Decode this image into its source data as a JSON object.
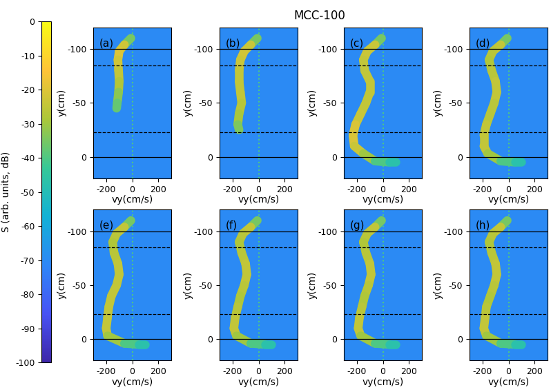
{
  "title": "MCC-100",
  "colorbar": {
    "label": "S (arb. units, dB)",
    "range": [
      -100,
      0
    ],
    "ticks": [
      0,
      -10,
      -20,
      -30,
      -40,
      -50,
      -60,
      -70,
      -80,
      -90,
      -100
    ]
  },
  "zero_line": {
    "v_y": 0,
    "S": -40
  },
  "background_S": -70,
  "chart_data": [
    {
      "type": "line",
      "title": "(a)",
      "x_label": "vy(cm/s)",
      "y_label": "y(cm)",
      "xlim": [
        -300,
        300
      ],
      "ylim": [
        20,
        -120
      ],
      "xticks": [
        -200,
        0,
        200
      ],
      "yticks": [
        -100,
        -50,
        0
      ],
      "lines": [
        {
          "y": -100,
          "line_style": "solid"
        },
        {
          "y": -85,
          "line_style": "dashed"
        },
        {
          "y": -23,
          "line_style": "dashed"
        },
        {
          "y": 0,
          "line_style": "solid"
        }
      ],
      "x": [
        -10,
        -60,
        -100,
        -110,
        -105,
        -100,
        -105,
        -115,
        -120
      ],
      "y": [
        -110,
        -104,
        -98,
        -90,
        -80,
        -70,
        -60,
        -50,
        -45
      ],
      "S": [
        -45,
        -25,
        -20,
        -20,
        -25,
        -25,
        -30,
        -35,
        -40
      ]
    },
    {
      "type": "line",
      "title": "(b)",
      "x_label": "vy(cm/s)",
      "y_label": "y(cm)",
      "xlim": [
        -300,
        300
      ],
      "ylim": [
        20,
        -120
      ],
      "xticks": [
        -200,
        0,
        200
      ],
      "yticks": [
        -100,
        -50,
        0
      ],
      "lines": [
        {
          "y": -100,
          "line_style": "solid"
        },
        {
          "y": -85,
          "line_style": "dashed"
        },
        {
          "y": -23,
          "line_style": "dashed"
        },
        {
          "y": 0,
          "line_style": "solid"
        }
      ],
      "x": [
        -10,
        -60,
        -110,
        -140,
        -150,
        -150,
        -140,
        -130,
        -150,
        -160,
        -150
      ],
      "y": [
        -110,
        -104,
        -98,
        -90,
        -80,
        -70,
        -60,
        -50,
        -40,
        -30,
        -25
      ],
      "S": [
        -45,
        -25,
        -22,
        -22,
        -25,
        -25,
        -25,
        -25,
        -28,
        -30,
        -38
      ]
    },
    {
      "type": "line",
      "title": "(c)",
      "x_label": "vy(cm/s)",
      "y_label": "y(cm)",
      "xlim": [
        -300,
        300
      ],
      "ylim": [
        20,
        -120
      ],
      "xticks": [
        -200,
        0,
        200
      ],
      "yticks": [
        -100,
        -50,
        0
      ],
      "lines": [
        {
          "y": -100,
          "line_style": "solid"
        },
        {
          "y": -85,
          "line_style": "dashed"
        },
        {
          "y": -23,
          "line_style": "dashed"
        },
        {
          "y": 0,
          "line_style": "solid"
        }
      ],
      "x": [
        -10,
        -60,
        -120,
        -150,
        -140,
        -100,
        -100,
        -130,
        -170,
        -210,
        -230,
        -220,
        -150,
        -60,
        50,
        100
      ],
      "y": [
        -110,
        -104,
        -98,
        -90,
        -80,
        -70,
        -60,
        -50,
        -40,
        -30,
        -20,
        -10,
        -3,
        4,
        5,
        5
      ],
      "S": [
        -45,
        -25,
        -22,
        -25,
        -25,
        -25,
        -25,
        -25,
        -25,
        -22,
        -20,
        -22,
        -25,
        -35,
        -45,
        -50
      ]
    },
    {
      "type": "line",
      "title": "(d)",
      "x_label": "vy(cm/s)",
      "y_label": "y(cm)",
      "xlim": [
        -300,
        300
      ],
      "ylim": [
        20,
        -120
      ],
      "xticks": [
        -200,
        0,
        200
      ],
      "yticks": [
        -100,
        -50,
        0
      ],
      "lines": [
        {
          "y": -100,
          "line_style": "solid"
        },
        {
          "y": -85,
          "line_style": "dashed"
        },
        {
          "y": -23,
          "line_style": "dashed"
        },
        {
          "y": 0,
          "line_style": "solid"
        }
      ],
      "x": [
        -10,
        -60,
        -120,
        -150,
        -130,
        -100,
        -90,
        -110,
        -140,
        -170,
        -190,
        -190,
        -160,
        -60,
        50,
        100
      ],
      "y": [
        -110,
        -104,
        -98,
        -90,
        -80,
        -70,
        -60,
        -50,
        -40,
        -30,
        -20,
        -10,
        -3,
        4,
        5,
        5
      ],
      "S": [
        -45,
        -25,
        -25,
        -28,
        -28,
        -25,
        -25,
        -25,
        -28,
        -25,
        -25,
        -25,
        -25,
        -35,
        -45,
        -50
      ]
    },
    {
      "type": "line",
      "title": "(e)",
      "x_label": "vy(cm/s)",
      "y_label": "y(cm)",
      "xlim": [
        -300,
        300
      ],
      "ylim": [
        20,
        -120
      ],
      "xticks": [
        -200,
        0,
        200
      ],
      "yticks": [
        -100,
        -50,
        0
      ],
      "lines": [
        {
          "y": -100,
          "line_style": "solid"
        },
        {
          "y": -85,
          "line_style": "dashed"
        },
        {
          "y": -23,
          "line_style": "dashed"
        },
        {
          "y": 0,
          "line_style": "solid"
        }
      ],
      "x": [
        -10,
        -60,
        -120,
        -150,
        -140,
        -110,
        -100,
        -120,
        -160,
        -180,
        -190,
        -200,
        -190,
        -60,
        50,
        100
      ],
      "y": [
        -110,
        -104,
        -98,
        -90,
        -80,
        -70,
        -60,
        -50,
        -40,
        -30,
        -20,
        -10,
        -3,
        4,
        5,
        5
      ],
      "S": [
        -45,
        -25,
        -25,
        -28,
        -28,
        -25,
        -25,
        -25,
        -25,
        -25,
        -25,
        -25,
        -25,
        -35,
        -45,
        -50
      ]
    },
    {
      "type": "line",
      "title": "(f)",
      "x_label": "vy(cm/s)",
      "y_label": "y(cm)",
      "xlim": [
        -300,
        300
      ],
      "ylim": [
        20,
        -120
      ],
      "xticks": [
        -200,
        0,
        200
      ],
      "yticks": [
        -100,
        -50,
        0
      ],
      "lines": [
        {
          "y": -100,
          "line_style": "solid"
        },
        {
          "y": -85,
          "line_style": "dashed"
        },
        {
          "y": -23,
          "line_style": "dashed"
        },
        {
          "y": 0,
          "line_style": "solid"
        }
      ],
      "x": [
        -10,
        -60,
        -120,
        -150,
        -130,
        -100,
        -90,
        -110,
        -140,
        -160,
        -180,
        -190,
        -170,
        -60,
        50,
        100
      ],
      "y": [
        -110,
        -104,
        -98,
        -90,
        -80,
        -70,
        -60,
        -50,
        -40,
        -30,
        -20,
        -10,
        -3,
        4,
        5,
        5
      ],
      "S": [
        -45,
        -25,
        -25,
        -28,
        -28,
        -25,
        -25,
        -25,
        -28,
        -28,
        -25,
        -25,
        -25,
        -35,
        -45,
        -50
      ]
    },
    {
      "type": "line",
      "title": "(g)",
      "x_label": "vy(cm/s)",
      "y_label": "y(cm)",
      "xlim": [
        -300,
        300
      ],
      "ylim": [
        20,
        -120
      ],
      "xticks": [
        -200,
        0,
        200
      ],
      "yticks": [
        -100,
        -50,
        0
      ],
      "lines": [
        {
          "y": -100,
          "line_style": "solid"
        },
        {
          "y": -85,
          "line_style": "dashed"
        },
        {
          "y": -23,
          "line_style": "dashed"
        },
        {
          "y": 0,
          "line_style": "solid"
        }
      ],
      "x": [
        -10,
        -60,
        -120,
        -150,
        -130,
        -100,
        -90,
        -110,
        -140,
        -160,
        -180,
        -190,
        -170,
        -60,
        50,
        100
      ],
      "y": [
        -110,
        -104,
        -98,
        -90,
        -80,
        -70,
        -60,
        -50,
        -40,
        -30,
        -20,
        -10,
        -3,
        4,
        5,
        5
      ],
      "S": [
        -45,
        -25,
        -25,
        -28,
        -28,
        -25,
        -25,
        -25,
        -28,
        -28,
        -25,
        -25,
        -25,
        -35,
        -45,
        -50
      ]
    },
    {
      "type": "line",
      "title": "(h)",
      "x_label": "vy(cm/s)",
      "y_label": "y(cm)",
      "xlim": [
        -300,
        300
      ],
      "ylim": [
        20,
        -120
      ],
      "xticks": [
        -200,
        0,
        200
      ],
      "yticks": [
        -100,
        -50,
        0
      ],
      "lines": [
        {
          "y": -100,
          "line_style": "solid"
        },
        {
          "y": -85,
          "line_style": "dashed"
        },
        {
          "y": -23,
          "line_style": "dashed"
        },
        {
          "y": 0,
          "line_style": "solid"
        }
      ],
      "x": [
        -10,
        -60,
        -120,
        -150,
        -130,
        -100,
        -90,
        -110,
        -140,
        -170,
        -180,
        -190,
        -170,
        -60,
        50,
        100
      ],
      "y": [
        -110,
        -104,
        -98,
        -90,
        -80,
        -70,
        -60,
        -50,
        -40,
        -30,
        -20,
        -10,
        -3,
        4,
        5,
        5
      ],
      "S": [
        -45,
        -25,
        -25,
        -28,
        -28,
        -25,
        -25,
        -25,
        -28,
        -28,
        -25,
        -25,
        -25,
        -35,
        -45,
        -50
      ]
    }
  ]
}
